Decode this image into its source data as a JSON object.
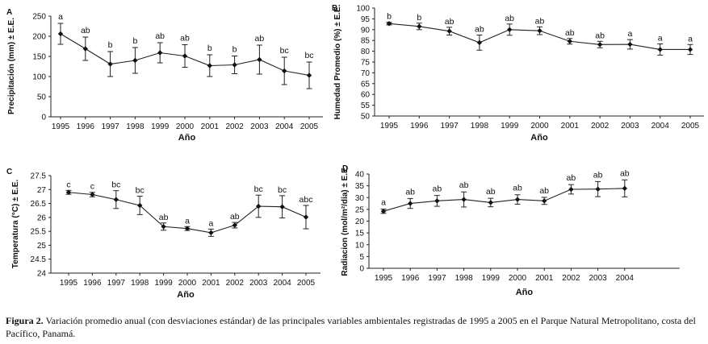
{
  "chart_data": [
    {
      "panel": "A",
      "type": "line",
      "ylabel": "Precipitación (mm) ± E.E.",
      "xlabel": "Año",
      "x": [
        "1995",
        "1996",
        "1997",
        "1998",
        "1999",
        "2000",
        "2001",
        "2002",
        "2003",
        "2004",
        "2005"
      ],
      "y": [
        206,
        169,
        131,
        140,
        159,
        151,
        127,
        129,
        142,
        114,
        103
      ],
      "err": [
        26,
        29,
        31,
        32,
        25,
        28,
        27,
        22,
        36,
        34,
        33
      ],
      "sig": [
        "a",
        "ab",
        "b",
        "b",
        "ab",
        "ab",
        "b",
        "b",
        "ab",
        "bc",
        "bc"
      ],
      "ylim": [
        0,
        250
      ],
      "yticks": [
        0,
        50,
        100,
        150,
        200,
        250
      ],
      "ytick_labels": [
        "0",
        "50",
        "100",
        "150",
        "200",
        "250"
      ]
    },
    {
      "panel": "B",
      "type": "line",
      "ylabel": "Humedad Promedio (%) ± E.E.",
      "xlabel": "Año",
      "x": [
        "1995",
        "1996",
        "1997",
        "1998",
        "1999",
        "2000",
        "2001",
        "2002",
        "2003",
        "2004",
        "2005"
      ],
      "y": [
        92.8,
        91.5,
        89.3,
        84,
        90,
        89.5,
        84.6,
        83.1,
        83.2,
        80.8,
        80.8
      ],
      "err": [
        0.6,
        1.5,
        1.8,
        3.5,
        2.6,
        1.8,
        1.3,
        1.5,
        2.2,
        2.6,
        2.3
      ],
      "sig": [
        "b",
        "b",
        "ab",
        "ab",
        "ab",
        "ab",
        "ab",
        "ab",
        "a",
        "a",
        "a"
      ],
      "ylim": [
        50,
        100
      ],
      "yticks": [
        50,
        55,
        60,
        65,
        70,
        75,
        80,
        85,
        90,
        95,
        100
      ],
      "ytick_labels": [
        "50",
        "55",
        "60",
        "65",
        "70",
        "75",
        "80",
        "85",
        "90",
        "95",
        "100"
      ]
    },
    {
      "panel": "C",
      "type": "line",
      "ylabel": "Temperatura (°C) ± E.E.",
      "xlabel": "Año",
      "x": [
        "1995",
        "1996",
        "1997",
        "1998",
        "1999",
        "2000",
        "2001",
        "2002",
        "2003",
        "2004",
        "2005"
      ],
      "y": [
        26.9,
        26.82,
        26.64,
        26.43,
        25.67,
        25.6,
        25.45,
        25.72,
        26.4,
        26.38,
        26.01
      ],
      "err": [
        0.07,
        0.08,
        0.32,
        0.33,
        0.13,
        0.07,
        0.13,
        0.1,
        0.4,
        0.4,
        0.42
      ],
      "sig": [
        "c",
        "c",
        "bc",
        "bc",
        "ab",
        "a",
        "a",
        "ab",
        "bc",
        "bc",
        "abc"
      ],
      "ylim": [
        24,
        27.5
      ],
      "yticks": [
        24,
        24.5,
        25,
        25.5,
        26,
        26.5,
        27,
        27.5
      ],
      "ytick_labels": [
        "24",
        "24.5",
        "25",
        "25.5",
        "26",
        "26.5",
        "27",
        "27.5"
      ]
    },
    {
      "panel": "D",
      "type": "line",
      "ylabel": "Radiacion (mol/m²/día) ± E.E.",
      "xlabel": "Año",
      "x": [
        "1995",
        "1996",
        "1997",
        "1998",
        "1999",
        "2000",
        "2001",
        "2002",
        "2003",
        "2004"
      ],
      "y": [
        24.2,
        27.5,
        28.6,
        29.2,
        27.9,
        29.2,
        28.6,
        33.5,
        33.6,
        33.9
      ],
      "err": [
        0.9,
        2.1,
        2.3,
        3.2,
        1.8,
        2,
        1.5,
        2,
        3.2,
        3.6
      ],
      "sig": [
        "a",
        "ab",
        "ab",
        "ab",
        "ab",
        "ab",
        "ab",
        "ab",
        "ab",
        "ab"
      ],
      "ylim": [
        0,
        40
      ],
      "yticks": [
        0,
        5,
        10,
        15,
        20,
        25,
        30,
        35,
        40
      ],
      "ytick_labels": [
        "0",
        "5",
        "10",
        "15",
        "20",
        "25",
        "30",
        "35",
        "40"
      ]
    }
  ],
  "caption": {
    "label": "Figura 2.",
    "text": " Variación promedio  anual (con desviaciones estándar) de las principales variables ambientales registradas de 1995 a 2005 en el Parque Natural Metropolitano, costa del Pacífico, Panamá."
  }
}
